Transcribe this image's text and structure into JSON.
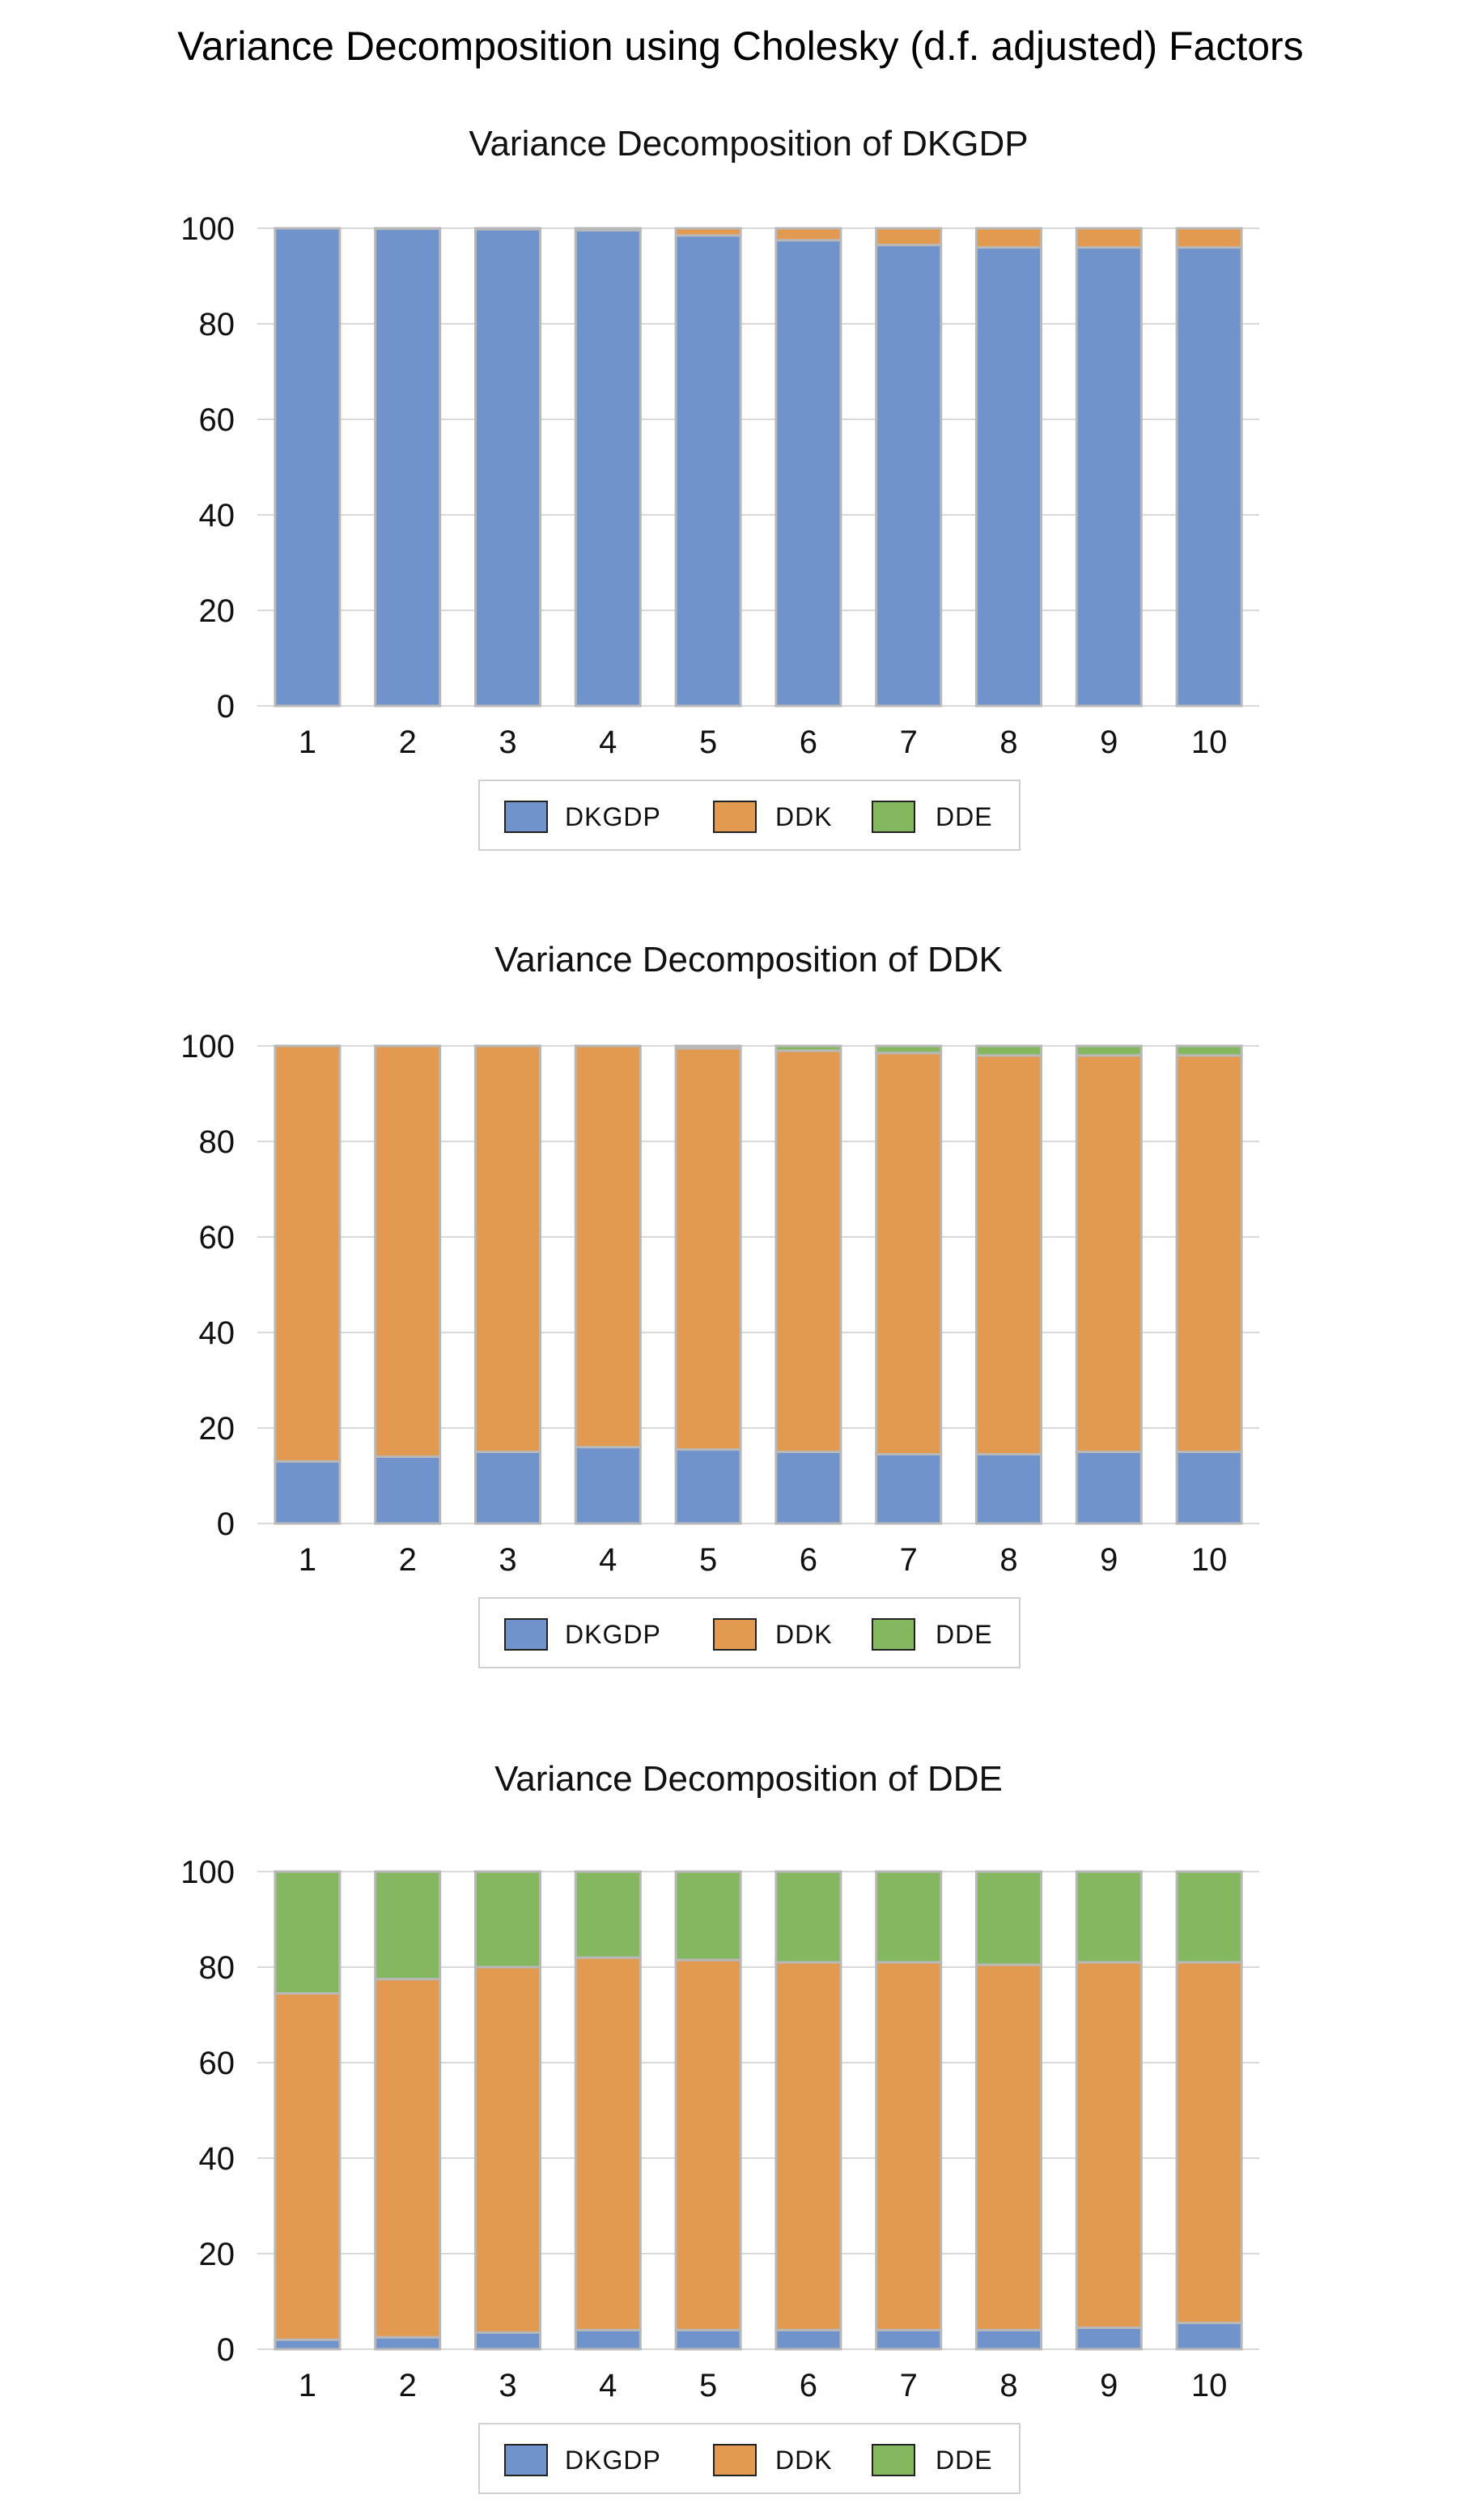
{
  "figure_title": "Variance Decomposition using Cholesky (d.f. adjusted) Factors",
  "colors": {
    "DKGDP": "#7093cb",
    "DDK": "#e19a50",
    "DDE": "#84b75f"
  },
  "legend": [
    "DKGDP",
    "DDK",
    "DDE"
  ],
  "chart_data": [
    {
      "type": "bar",
      "stacked": true,
      "title": "Variance Decomposition of DKGDP",
      "categories": [
        "1",
        "2",
        "3",
        "4",
        "5",
        "6",
        "7",
        "8",
        "9",
        "10"
      ],
      "ylim": [
        0,
        100
      ],
      "yticks": [
        0,
        20,
        40,
        60,
        80,
        100
      ],
      "grid": true,
      "legend_position": "bottom",
      "series": [
        {
          "name": "DKGDP",
          "values": [
            100,
            99.9,
            99.8,
            99.6,
            98.5,
            97.5,
            96.5,
            96.0,
            96.0,
            96.0
          ]
        },
        {
          "name": "DDK",
          "values": [
            0,
            0.1,
            0.2,
            0.4,
            1.5,
            2.5,
            3.5,
            4.0,
            4.0,
            4.0
          ]
        },
        {
          "name": "DDE",
          "values": [
            0,
            0,
            0,
            0,
            0,
            0,
            0,
            0,
            0,
            0
          ]
        }
      ]
    },
    {
      "type": "bar",
      "stacked": true,
      "title": "Variance Decomposition of DDK",
      "categories": [
        "1",
        "2",
        "3",
        "4",
        "5",
        "6",
        "7",
        "8",
        "9",
        "10"
      ],
      "ylim": [
        0,
        100
      ],
      "yticks": [
        0,
        20,
        40,
        60,
        80,
        100
      ],
      "grid": true,
      "legend_position": "bottom",
      "series": [
        {
          "name": "DKGDP",
          "values": [
            13,
            14,
            15,
            16,
            15.5,
            15,
            14.5,
            14.5,
            15,
            15
          ]
        },
        {
          "name": "DDK",
          "values": [
            87,
            86,
            85,
            84,
            84,
            84,
            84,
            83.5,
            83,
            83
          ]
        },
        {
          "name": "DDE",
          "values": [
            0,
            0,
            0,
            0,
            0.5,
            1,
            1.5,
            2,
            2,
            2
          ]
        }
      ]
    },
    {
      "type": "bar",
      "stacked": true,
      "title": "Variance Decomposition of DDE",
      "categories": [
        "1",
        "2",
        "3",
        "4",
        "5",
        "6",
        "7",
        "8",
        "9",
        "10"
      ],
      "ylim": [
        0,
        100
      ],
      "yticks": [
        0,
        20,
        40,
        60,
        80,
        100
      ],
      "grid": true,
      "legend_position": "bottom",
      "series": [
        {
          "name": "DKGDP",
          "values": [
            2,
            2.5,
            3.5,
            4,
            4,
            4,
            4,
            4,
            4.5,
            5.5
          ]
        },
        {
          "name": "DDK",
          "values": [
            72.5,
            75,
            76.5,
            78,
            77.5,
            77,
            77,
            76.5,
            76.5,
            75.5
          ]
        },
        {
          "name": "DDE",
          "values": [
            25.5,
            22.5,
            20,
            18,
            18.5,
            19,
            19,
            19.5,
            19,
            19
          ]
        }
      ]
    }
  ]
}
